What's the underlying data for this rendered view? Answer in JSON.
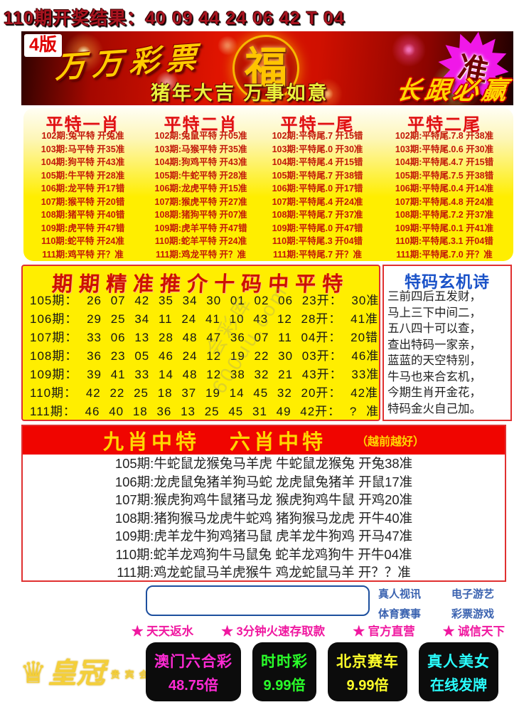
{
  "page": {
    "result_header": "110期开奖结果：40 09 44 24 06 42 T 04"
  },
  "banner": {
    "edition": "4版",
    "brand": "万万彩票",
    "fu_symbol": "福",
    "greeting": "猪年大吉  万事如意",
    "slogan": "长跟必赢",
    "accuracy_badge": "准",
    "colors": {
      "badge_bg": "#f018e8",
      "banner_red": "#e01400",
      "greeting_text": "#e9f23c",
      "slogan_text": "#ffd700"
    }
  },
  "pingte": {
    "columns": [
      {
        "title": "平特一肖",
        "rows": [
          "102期:兔平特 开兔准",
          "103期:马平特 开35准",
          "104期:狗平特 开43准",
          "105期:牛平特 开28准",
          "106期:龙平特 开17错",
          "107期:猴平特 开20错",
          "108期:猪平特 开40错",
          "109期:虎平特 开47错",
          "110期:蛇平特 开24准",
          "111期:鸡平特 开？准"
        ]
      },
      {
        "title": "平特二肖",
        "rows": [
          "102期:兔鼠平特 开05准",
          "103期:马猴平特 开35准",
          "104期:狗鸡平特 开43准",
          "105期:牛蛇平特 开28准",
          "106期:龙虎平特 开15准",
          "107期:猴虎平特 开27准",
          "108期:猪狗平特 开07准",
          "109期:虎羊平特 开47错",
          "110期:蛇羊平特 开24准",
          "111期:鸡龙平特 开？准"
        ]
      },
      {
        "title": "平特一尾",
        "rows": [
          "102期:平特尾.7 开15错",
          "103期:平特尾.0 开30准",
          "104期:平特尾.4 开15错",
          "105期:平特尾.7 开38错",
          "106期:平特尾.0 开17错",
          "107期:平特尾.4 开24准",
          "108期:平特尾.7 开37准",
          "109期:平特尾.0 开47错",
          "110期:平特尾.3 开04错",
          "111期:平特尾.7 开？准"
        ]
      },
      {
        "title": "平特二尾",
        "rows": [
          "102期:平特尾.7.8 开38准",
          "103期:平特尾.0.6 开30准",
          "104期:平特尾.4.7 开15错",
          "105期:平特尾.7.5 开38错",
          "106期:平特尾.0.4 开14准",
          "107期:平特尾.4.8 开24准",
          "108期:平特尾.7.2 开37准",
          "109期:平特尾.0.1 开41准",
          "110期:平特尾.3.1 开04错",
          "111期:平特尾.7.0 开？准"
        ]
      }
    ]
  },
  "shima": {
    "title": "期期精准推介十码中平特",
    "rows": [
      "105期： 26 07 42 35 34 30 01 02 06 23开： 30准",
      "106期： 29 25 34 11 24 41 10 43 12 28开： 41准",
      "107期： 33 06 13 28 48 47 36 07 11 04开： 20错",
      "108期： 36 23 05 46 24 12 19 22 30 03开： 46准",
      "109期： 39 41 33 14 48 12 38 32 21 43开： 33准",
      "110期： 42 22 25 18 37 19 14 45 32 20开： 42准",
      "111期： 46 40 18 36 13 25 45 31 49 42开： ? 准"
    ]
  },
  "poem": {
    "title": "特码玄机诗",
    "lines": [
      "三前四后五发财，",
      "马上三下中间二，",
      "五八四十可以查，",
      "查出特码一家亲，",
      "蓝蓝的天空特别，",
      "牛马也来合玄机，",
      "今期生肖开金花，",
      "特码金火自己加。"
    ]
  },
  "jiuxiao": {
    "header_nine": "九肖中特",
    "header_six": "六肖中特",
    "header_note": "（越前越好）",
    "rows": [
      "105期:牛蛇鼠龙猴兔马羊虎  牛蛇鼠龙猴兔  开兔38准",
      "106期:龙虎鼠兔猪羊狗马蛇  龙虎鼠兔猪羊  开鼠17准",
      "107期:猴虎狗鸡牛鼠猪马龙  猴虎狗鸡牛鼠  开鸡20准",
      "108期:猪狗猴马龙虎牛蛇鸡  猪狗猴马龙虎  开牛40准",
      "109期:虎羊龙牛狗鸡猪马鼠  虎羊龙牛狗鸡  开马47准",
      "110期:蛇羊龙鸡狗牛马鼠兔  蛇羊龙鸡狗牛  开牛04准",
      "111期:鸡龙蛇鼠马羊虎猴牛  鸡龙蛇鼠马羊  开？？准"
    ]
  },
  "watermark": "会彩库600uu.com",
  "footer": {
    "input_value": "",
    "links": [
      "真人视讯",
      "电子游艺",
      "体育赛事",
      "彩票游戏"
    ],
    "promos": [
      "★ 天天返水",
      "★ 3分钟火速存取款",
      "★ 官方直营",
      "★ 诚信天下"
    ],
    "logo": {
      "crown": "♛",
      "name": "皇冠",
      "sub": "贵宾会"
    },
    "games": [
      {
        "name": "澳门六合彩",
        "value": "48.75倍",
        "color": "#ff2ad4"
      },
      {
        "name": "时时彩",
        "value": "9.99倍",
        "color": "#2aff2a"
      },
      {
        "name": "北京赛车",
        "value": "9.99倍",
        "color": "#ffff2a"
      },
      {
        "name": "真人美女",
        "value": "在线发牌",
        "color": "#2affff"
      }
    ]
  }
}
